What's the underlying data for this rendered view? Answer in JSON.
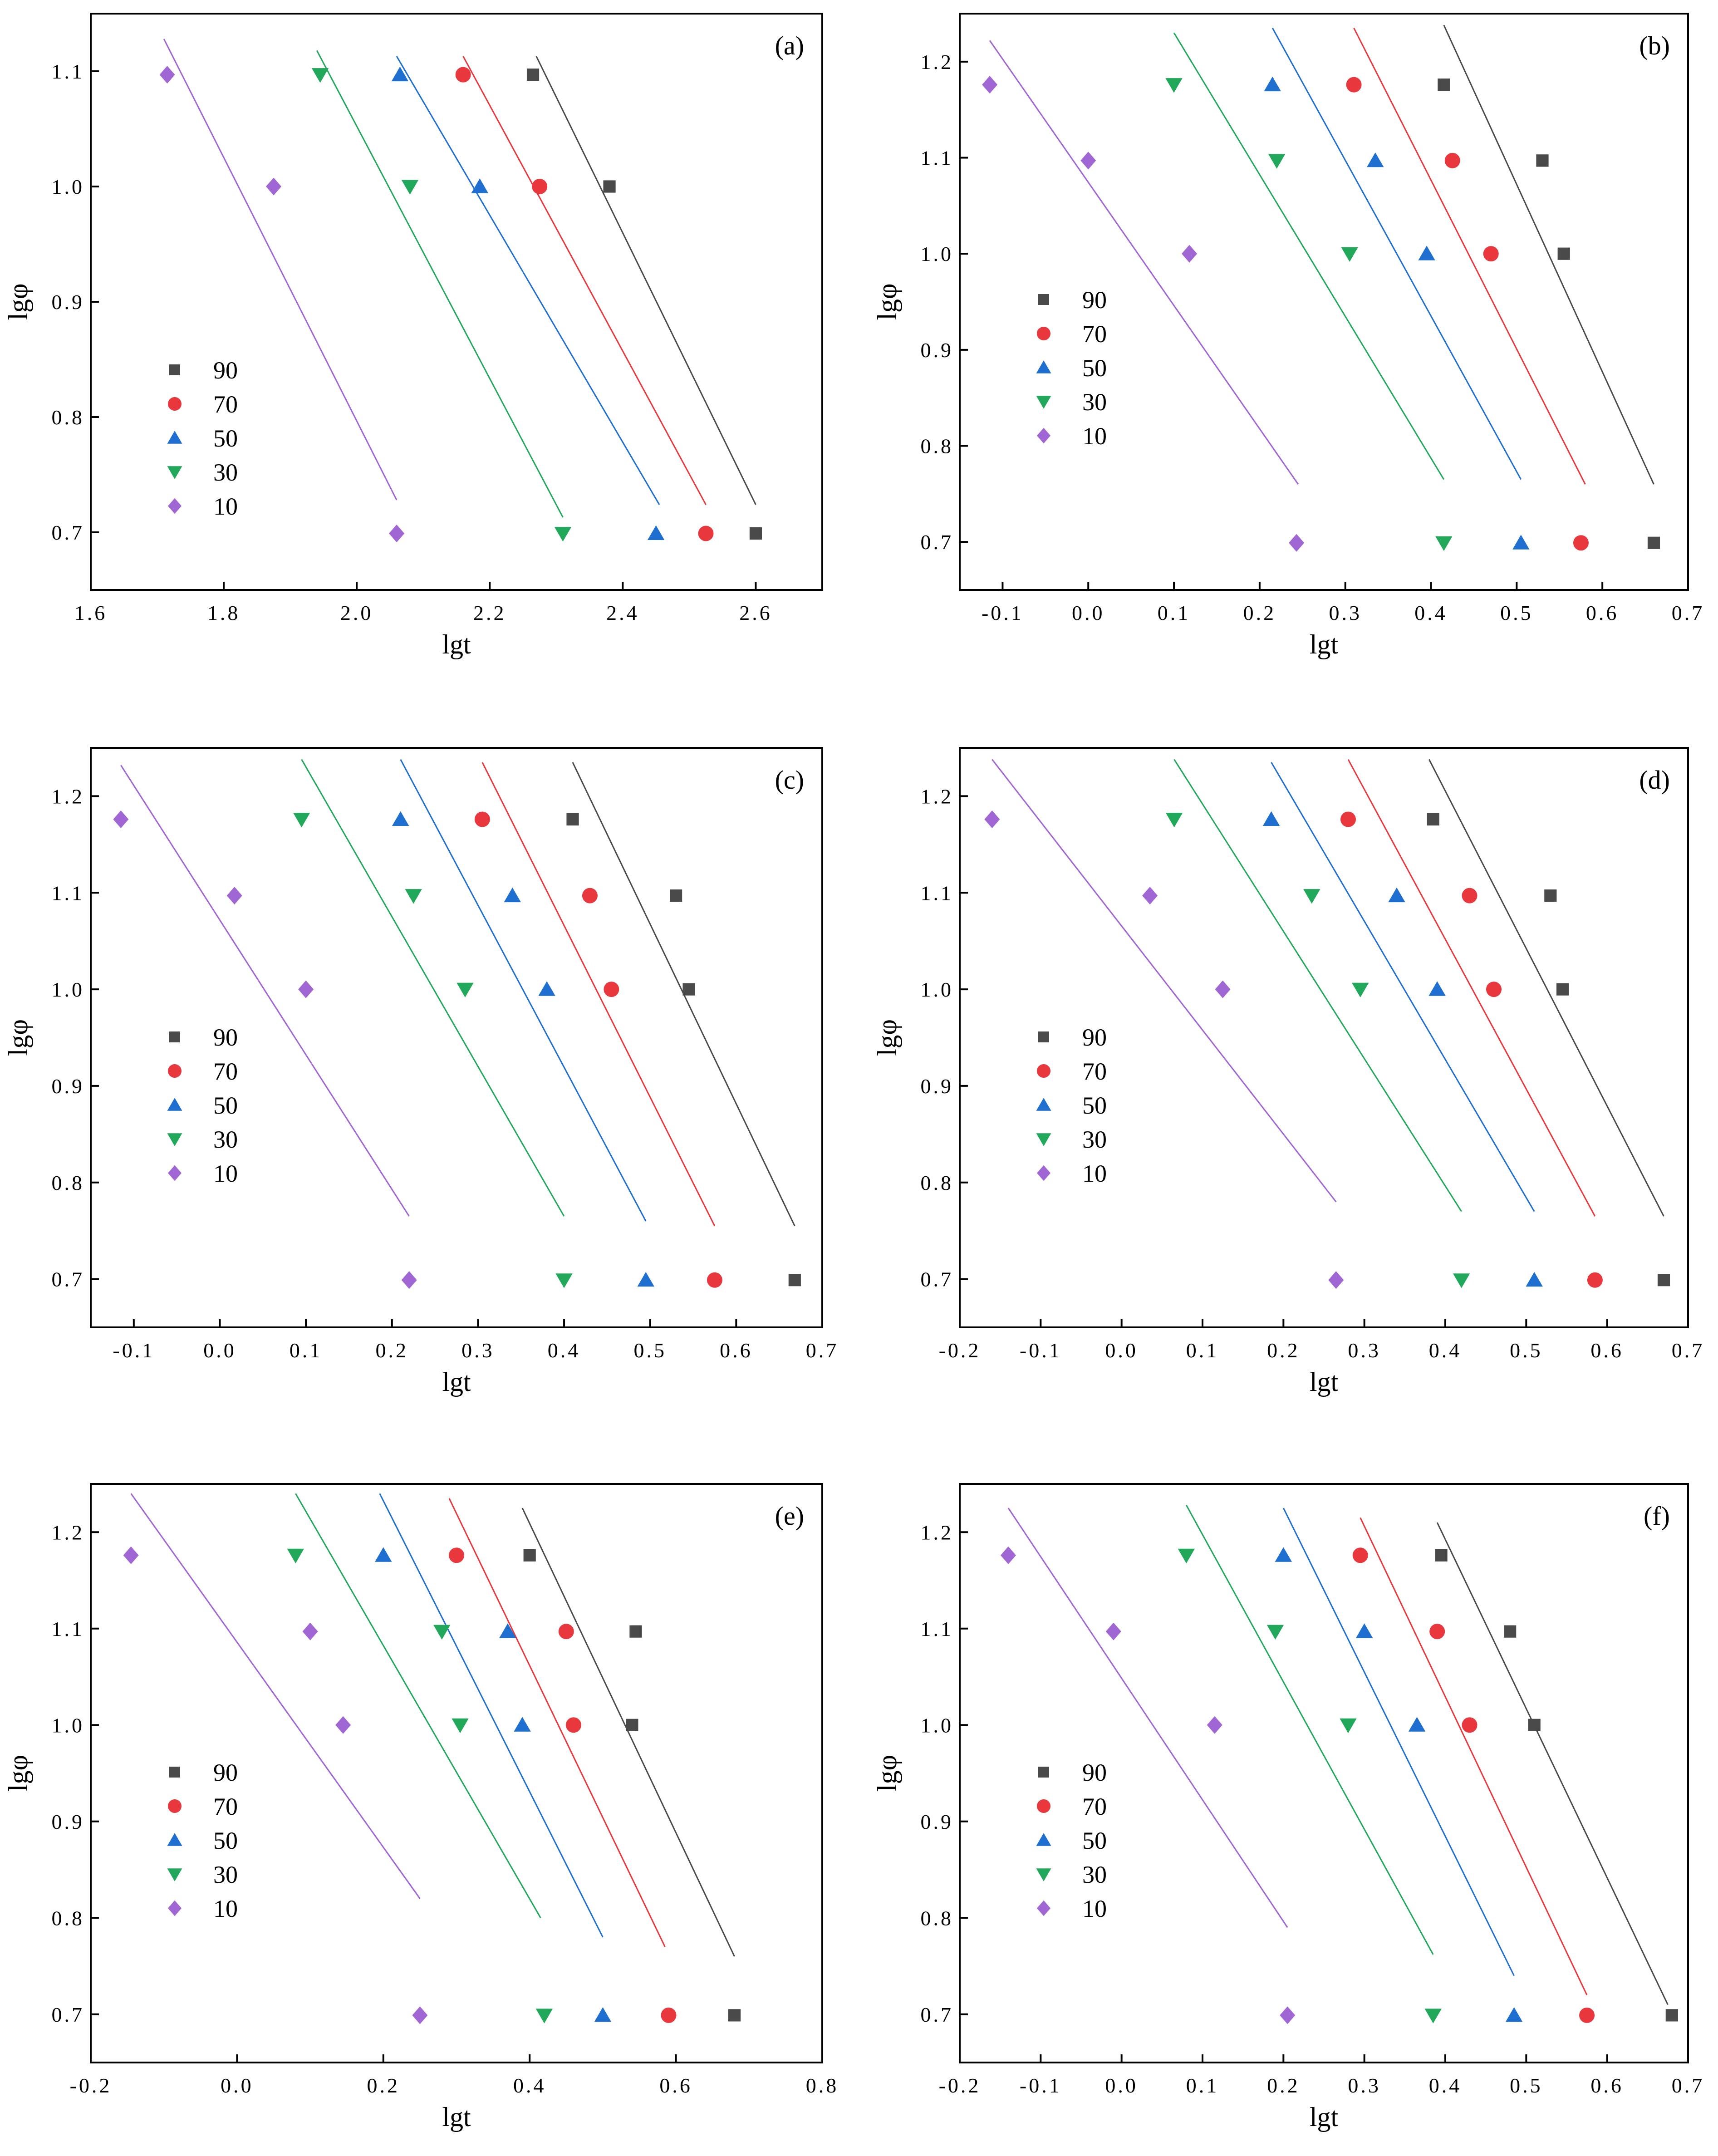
{
  "chart_data": [
    {
      "type": "scatter",
      "panel_label": "(a)",
      "xlabel": "lgt",
      "ylabel": "lgφ",
      "xlim": [
        1.6,
        2.7
      ],
      "ylim": [
        0.65,
        1.15
      ],
      "xticks": [
        "1.6",
        "1.8",
        "2.0",
        "2.2",
        "2.4",
        "2.6"
      ],
      "yticks": [
        "0.7",
        "0.8",
        "0.9",
        "1.0",
        "1.1"
      ],
      "legend_position": "middle-left",
      "series": [
        {
          "name": "90",
          "color": "#4a4a4a",
          "marker": "square",
          "x": [
            2.265,
            2.38,
            2.6
          ],
          "y": [
            1.097,
            1.0,
            0.699
          ],
          "fit": [
            [
              2.27,
              1.113
            ],
            [
              2.6,
              0.724
            ]
          ]
        },
        {
          "name": "70",
          "color": "#e8383d",
          "marker": "circle",
          "x": [
            2.16,
            2.275,
            2.525
          ],
          "y": [
            1.097,
            1.0,
            0.699
          ],
          "fit": [
            [
              2.16,
              1.113
            ],
            [
              2.525,
              0.724
            ]
          ]
        },
        {
          "name": "50",
          "color": "#1f6fd0",
          "marker": "triangle-up",
          "x": [
            2.065,
            2.185,
            2.45
          ],
          "y": [
            1.097,
            1.0,
            0.699
          ],
          "fit": [
            [
              2.06,
              1.113
            ],
            [
              2.455,
              0.724
            ]
          ]
        },
        {
          "name": "30",
          "color": "#22a85a",
          "marker": "triangle-down",
          "x": [
            1.945,
            2.08,
            2.31
          ],
          "y": [
            1.097,
            1.0,
            0.699
          ],
          "fit": [
            [
              1.94,
              1.118
            ],
            [
              2.31,
              0.713
            ]
          ]
        },
        {
          "name": "10",
          "color": "#a066d3",
          "marker": "diamond",
          "x": [
            1.715,
            1.875,
            2.06
          ],
          "y": [
            1.097,
            1.0,
            0.699
          ],
          "fit": [
            [
              1.71,
              1.128
            ],
            [
              2.06,
              0.728
            ]
          ]
        }
      ]
    },
    {
      "type": "scatter",
      "panel_label": "(b)",
      "xlabel": "lgt",
      "ylabel": "lgφ",
      "xlim": [
        -0.15,
        0.7
      ],
      "ylim": [
        0.65,
        1.25
      ],
      "xticks": [
        "-0.1",
        "0.0",
        "0.1",
        "0.2",
        "0.3",
        "0.4",
        "0.5",
        "0.6",
        "0.7"
      ],
      "yticks": [
        "0.7",
        "0.8",
        "0.9",
        "1.0",
        "1.1",
        "1.2"
      ],
      "legend_position": "lower-left",
      "series": [
        {
          "name": "90",
          "color": "#4a4a4a",
          "marker": "square",
          "x": [
            0.415,
            0.53,
            0.555,
            0.66
          ],
          "y": [
            1.176,
            1.097,
            1.0,
            0.699
          ],
          "fit": [
            [
              0.415,
              1.238
            ],
            [
              0.66,
              0.76
            ]
          ]
        },
        {
          "name": "70",
          "color": "#e8383d",
          "marker": "circle",
          "x": [
            0.31,
            0.425,
            0.47,
            0.575
          ],
          "y": [
            1.176,
            1.097,
            1.0,
            0.699
          ],
          "fit": [
            [
              0.31,
              1.235
            ],
            [
              0.58,
              0.76
            ]
          ]
        },
        {
          "name": "50",
          "color": "#1f6fd0",
          "marker": "triangle-up",
          "x": [
            0.215,
            0.335,
            0.395,
            0.505
          ],
          "y": [
            1.176,
            1.097,
            1.0,
            0.699
          ],
          "fit": [
            [
              0.215,
              1.235
            ],
            [
              0.505,
              0.765
            ]
          ]
        },
        {
          "name": "30",
          "color": "#22a85a",
          "marker": "triangle-down",
          "x": [
            0.1,
            0.22,
            0.305,
            0.415
          ],
          "y": [
            1.176,
            1.097,
            1.0,
            0.699
          ],
          "fit": [
            [
              0.1,
              1.23
            ],
            [
              0.415,
              0.765
            ]
          ]
        },
        {
          "name": "10",
          "color": "#a066d3",
          "marker": "diamond",
          "x": [
            -0.115,
            0.0,
            0.118,
            0.243
          ],
          "y": [
            1.176,
            1.097,
            1.0,
            0.699
          ],
          "fit": [
            [
              -0.115,
              1.222
            ],
            [
              0.245,
              0.76
            ]
          ]
        }
      ]
    },
    {
      "type": "scatter",
      "panel_label": "(c)",
      "xlabel": "lgt",
      "ylabel": "lgφ",
      "xlim": [
        -0.15,
        0.7
      ],
      "ylim": [
        0.65,
        1.25
      ],
      "xticks": [
        "-0.1",
        "0.0",
        "0.1",
        "0.2",
        "0.3",
        "0.4",
        "0.5",
        "0.6",
        "0.7"
      ],
      "yticks": [
        "0.7",
        "0.8",
        "0.9",
        "1.0",
        "1.1",
        "1.2"
      ],
      "legend_position": "lower-left",
      "series": [
        {
          "name": "90",
          "color": "#4a4a4a",
          "marker": "square",
          "x": [
            0.41,
            0.53,
            0.545,
            0.668
          ],
          "y": [
            1.176,
            1.097,
            1.0,
            0.699
          ],
          "fit": [
            [
              0.41,
              1.235
            ],
            [
              0.668,
              0.755
            ]
          ]
        },
        {
          "name": "70",
          "color": "#e8383d",
          "marker": "circle",
          "x": [
            0.305,
            0.43,
            0.455,
            0.575
          ],
          "y": [
            1.176,
            1.097,
            1.0,
            0.699
          ],
          "fit": [
            [
              0.305,
              1.235
            ],
            [
              0.575,
              0.755
            ]
          ]
        },
        {
          "name": "50",
          "color": "#1f6fd0",
          "marker": "triangle-up",
          "x": [
            0.21,
            0.34,
            0.38,
            0.495
          ],
          "y": [
            1.176,
            1.097,
            1.0,
            0.699
          ],
          "fit": [
            [
              0.21,
              1.238
            ],
            [
              0.495,
              0.76
            ]
          ]
        },
        {
          "name": "30",
          "color": "#22a85a",
          "marker": "triangle-down",
          "x": [
            0.095,
            0.225,
            0.285,
            0.4
          ],
          "y": [
            1.176,
            1.097,
            1.0,
            0.699
          ],
          "fit": [
            [
              0.095,
              1.238
            ],
            [
              0.4,
              0.765
            ]
          ]
        },
        {
          "name": "10",
          "color": "#a066d3",
          "marker": "diamond",
          "x": [
            -0.115,
            0.017,
            0.1,
            0.22
          ],
          "y": [
            1.176,
            1.097,
            1.0,
            0.699
          ],
          "fit": [
            [
              -0.115,
              1.232
            ],
            [
              0.22,
              0.765
            ]
          ]
        }
      ]
    },
    {
      "type": "scatter",
      "panel_label": "(d)",
      "xlabel": "lgt",
      "ylabel": "lgφ",
      "xlim": [
        -0.2,
        0.7
      ],
      "ylim": [
        0.65,
        1.25
      ],
      "xticks": [
        "-0.2",
        "-0.1",
        "0.0",
        "0.1",
        "0.2",
        "0.3",
        "0.4",
        "0.5",
        "0.6",
        "0.7"
      ],
      "yticks": [
        "0.7",
        "0.8",
        "0.9",
        "1.0",
        "1.1",
        "1.2"
      ],
      "legend_position": "lower-left",
      "series": [
        {
          "name": "90",
          "color": "#4a4a4a",
          "marker": "square",
          "x": [
            0.385,
            0.53,
            0.545,
            0.67
          ],
          "y": [
            1.176,
            1.097,
            1.0,
            0.699
          ],
          "fit": [
            [
              0.38,
              1.238
            ],
            [
              0.67,
              0.765
            ]
          ]
        },
        {
          "name": "70",
          "color": "#e8383d",
          "marker": "circle",
          "x": [
            0.28,
            0.43,
            0.46,
            0.585
          ],
          "y": [
            1.176,
            1.097,
            1.0,
            0.699
          ],
          "fit": [
            [
              0.28,
              1.238
            ],
            [
              0.585,
              0.765
            ]
          ]
        },
        {
          "name": "50",
          "color": "#1f6fd0",
          "marker": "triangle-up",
          "x": [
            0.185,
            0.34,
            0.39,
            0.51
          ],
          "y": [
            1.176,
            1.097,
            1.0,
            0.699
          ],
          "fit": [
            [
              0.185,
              1.235
            ],
            [
              0.51,
              0.77
            ]
          ]
        },
        {
          "name": "30",
          "color": "#22a85a",
          "marker": "triangle-down",
          "x": [
            0.065,
            0.235,
            0.295,
            0.42
          ],
          "y": [
            1.176,
            1.097,
            1.0,
            0.699
          ],
          "fit": [
            [
              0.065,
              1.238
            ],
            [
              0.42,
              0.77
            ]
          ]
        },
        {
          "name": "10",
          "color": "#a066d3",
          "marker": "diamond",
          "x": [
            -0.16,
            0.035,
            0.125,
            0.265
          ],
          "y": [
            1.176,
            1.097,
            1.0,
            0.699
          ],
          "fit": [
            [
              -0.16,
              1.238
            ],
            [
              0.265,
              0.78
            ]
          ]
        }
      ]
    },
    {
      "type": "scatter",
      "panel_label": "(e)",
      "xlabel": "lgt",
      "ylabel": "lgφ",
      "xlim": [
        -0.2,
        0.8
      ],
      "ylim": [
        0.65,
        1.25
      ],
      "xticks": [
        "-0.2",
        "0.0",
        "0.2",
        "0.4",
        "0.6",
        "0.8"
      ],
      "yticks": [
        "0.7",
        "0.8",
        "0.9",
        "1.0",
        "1.1",
        "1.2"
      ],
      "legend_position": "lower-left",
      "series": [
        {
          "name": "90",
          "color": "#4a4a4a",
          "marker": "square",
          "x": [
            0.4,
            0.545,
            0.54,
            0.68
          ],
          "y": [
            1.176,
            1.097,
            1.0,
            0.699
          ],
          "fit": [
            [
              0.39,
              1.225
            ],
            [
              0.68,
              0.76
            ]
          ]
        },
        {
          "name": "70",
          "color": "#e8383d",
          "marker": "circle",
          "x": [
            0.3,
            0.45,
            0.46,
            0.59
          ],
          "y": [
            1.176,
            1.097,
            1.0,
            0.699
          ],
          "fit": [
            [
              0.29,
              1.235
            ],
            [
              0.585,
              0.77
            ]
          ]
        },
        {
          "name": "50",
          "color": "#1f6fd0",
          "marker": "triangle-up",
          "x": [
            0.2,
            0.37,
            0.39,
            0.5
          ],
          "y": [
            1.176,
            1.097,
            1.0,
            0.699
          ],
          "fit": [
            [
              0.195,
              1.24
            ],
            [
              0.5,
              0.78
            ]
          ]
        },
        {
          "name": "30",
          "color": "#22a85a",
          "marker": "triangle-down",
          "x": [
            0.08,
            0.28,
            0.305,
            0.42
          ],
          "y": [
            1.176,
            1.097,
            1.0,
            0.699
          ],
          "fit": [
            [
              0.08,
              1.24
            ],
            [
              0.415,
              0.8
            ]
          ]
        },
        {
          "name": "10",
          "color": "#a066d3",
          "marker": "diamond",
          "x": [
            -0.145,
            0.1,
            0.145,
            0.25
          ],
          "y": [
            1.176,
            1.097,
            1.0,
            0.699
          ],
          "fit": [
            [
              -0.145,
              1.24
            ],
            [
              0.25,
              0.82
            ]
          ]
        }
      ]
    },
    {
      "type": "scatter",
      "panel_label": "(f)",
      "xlabel": "lgt",
      "ylabel": "lgφ",
      "xlim": [
        -0.2,
        0.7
      ],
      "ylim": [
        0.65,
        1.25
      ],
      "xticks": [
        "-0.2",
        "-0.1",
        "0.0",
        "0.1",
        "0.2",
        "0.3",
        "0.4",
        "0.5",
        "0.6",
        "0.7"
      ],
      "yticks": [
        "0.7",
        "0.8",
        "0.9",
        "1.0",
        "1.1",
        "1.2"
      ],
      "legend_position": "lower-left",
      "series": [
        {
          "name": "90",
          "color": "#4a4a4a",
          "marker": "square",
          "x": [
            0.395,
            0.48,
            0.51,
            0.68
          ],
          "y": [
            1.176,
            1.097,
            1.0,
            0.699
          ],
          "fit": [
            [
              0.39,
              1.21
            ],
            [
              0.675,
              0.71
            ]
          ]
        },
        {
          "name": "70",
          "color": "#e8383d",
          "marker": "circle",
          "x": [
            0.295,
            0.39,
            0.43,
            0.575
          ],
          "y": [
            1.176,
            1.097,
            1.0,
            0.699
          ],
          "fit": [
            [
              0.295,
              1.215
            ],
            [
              0.575,
              0.72
            ]
          ]
        },
        {
          "name": "50",
          "color": "#1f6fd0",
          "marker": "triangle-up",
          "x": [
            0.2,
            0.3,
            0.365,
            0.485
          ],
          "y": [
            1.176,
            1.097,
            1.0,
            0.699
          ],
          "fit": [
            [
              0.2,
              1.225
            ],
            [
              0.485,
              0.74
            ]
          ]
        },
        {
          "name": "30",
          "color": "#22a85a",
          "marker": "triangle-down",
          "x": [
            0.08,
            0.19,
            0.28,
            0.385
          ],
          "y": [
            1.176,
            1.097,
            1.0,
            0.699
          ],
          "fit": [
            [
              0.08,
              1.228
            ],
            [
              0.385,
              0.762
            ]
          ]
        },
        {
          "name": "10",
          "color": "#a066d3",
          "marker": "diamond",
          "x": [
            -0.14,
            -0.01,
            0.115,
            0.205
          ],
          "y": [
            1.176,
            1.097,
            1.0,
            0.699
          ],
          "fit": [
            [
              -0.14,
              1.225
            ],
            [
              0.205,
              0.79
            ]
          ]
        }
      ]
    }
  ]
}
